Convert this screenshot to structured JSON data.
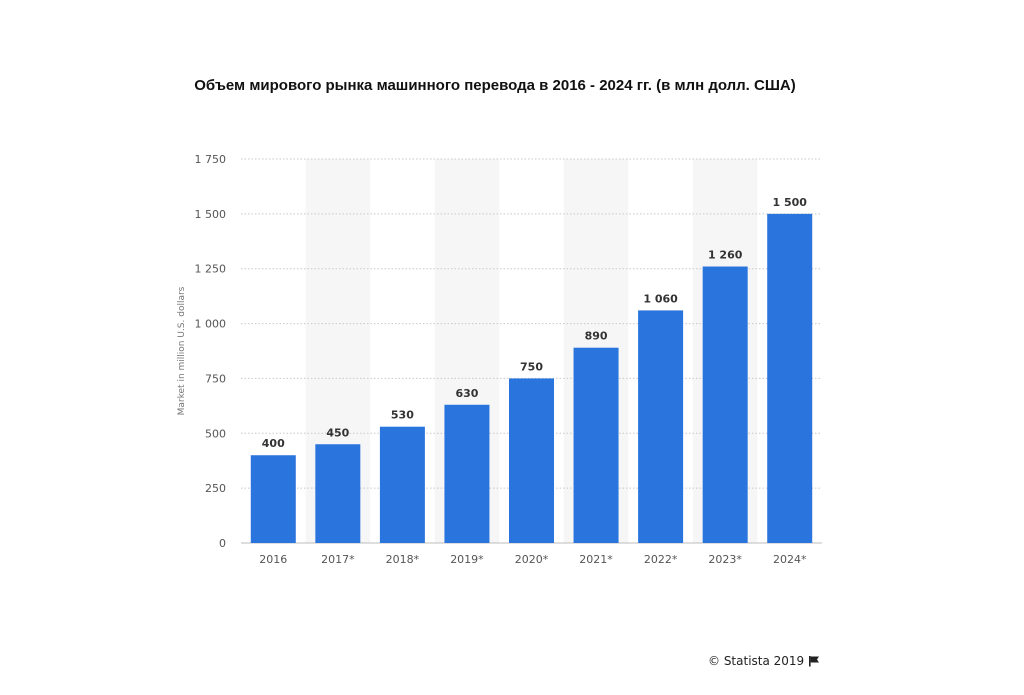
{
  "chart_data": {
    "type": "bar",
    "title": "Объем мирового рынка машинного перевода в 2016 - 2024 гг. (в млн долл. США)",
    "ylabel": "Market in million U.S. dollars",
    "xlabel": "",
    "categories": [
      "2016",
      "2017*",
      "2018*",
      "2019*",
      "2020*",
      "2021*",
      "2022*",
      "2023*",
      "2024*"
    ],
    "values": [
      400,
      450,
      530,
      630,
      750,
      890,
      1060,
      1260,
      1500
    ],
    "value_labels": [
      "400",
      "450",
      "530",
      "630",
      "750",
      "890",
      "1 060",
      "1 260",
      "1 500"
    ],
    "ylim": [
      0,
      1750
    ],
    "yticks": [
      0,
      250,
      500,
      750,
      1000,
      1250,
      1500,
      1750
    ],
    "ytick_labels": [
      "0",
      "250",
      "500",
      "750",
      "1 000",
      "1 250",
      "1 500",
      "1 750"
    ],
    "grid": true,
    "bar_color": "#2a74dd"
  },
  "footer": {
    "credit": "© Statista 2019"
  }
}
